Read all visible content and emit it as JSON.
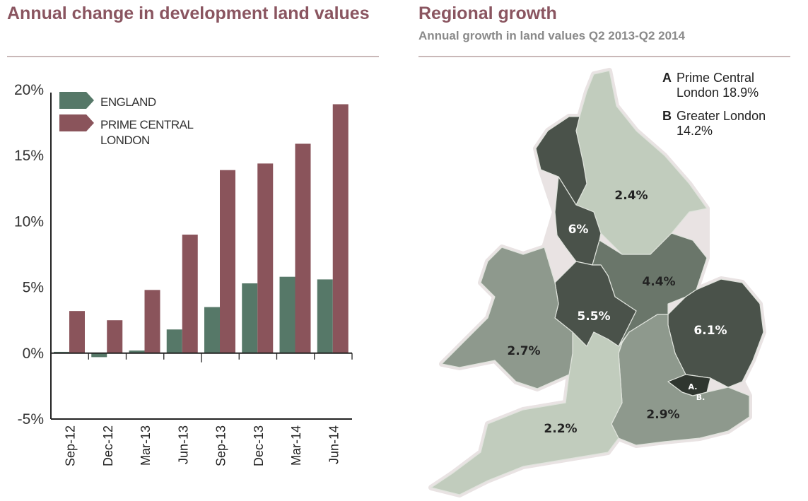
{
  "left_panel": {
    "title": "Annual change in development land values"
  },
  "right_panel": {
    "title": "Regional growth",
    "subtitle": "Annual growth in land values Q2 2013-Q2 2014",
    "legend": [
      {
        "key": "A",
        "text": "Prime Central",
        "text2": "London 18.9%"
      },
      {
        "key": "B",
        "text": "Greater London",
        "text2": "14.2%"
      }
    ],
    "regions": {
      "north_east_yorkshire": "2.4%",
      "north_west": "6%",
      "east_midlands": "4.4%",
      "west_midlands": "5.5%",
      "east": "6.1%",
      "wales": "2.7%",
      "south_east": "2.9%",
      "south_west": "2.2%",
      "london_a": "A.",
      "london_b": "B."
    },
    "colors": {
      "dark": "#4a524a",
      "mid": "#6a766a",
      "midlight": "#8e998d",
      "light": "#c1ccbd",
      "london": "#2f362f"
    }
  },
  "chart_data": {
    "type": "bar",
    "title": "Annual change in development land values",
    "xlabel": "",
    "ylabel": "",
    "categories": [
      "Sep-12",
      "Dec-12",
      "Mar-13",
      "Jun-13",
      "Sep-13",
      "Dec-13",
      "Mar-14",
      "Jun-14"
    ],
    "series": [
      {
        "name": "ENGLAND",
        "color": "#567868",
        "values": [
          0.1,
          -0.3,
          0.2,
          1.8,
          3.5,
          5.3,
          5.8,
          5.6
        ]
      },
      {
        "name": "PRIME CENTRAL LONDON",
        "color": "#8a545b",
        "values": [
          3.2,
          2.5,
          4.8,
          9.0,
          13.9,
          14.4,
          15.9,
          18.9
        ]
      }
    ],
    "legend_names": [
      "ENGLAND",
      "PRIME CENTRAL",
      "LONDON"
    ],
    "ylim": [
      -5,
      20
    ],
    "yticks": [
      "20%",
      "15%",
      "10%",
      "5%",
      "0%",
      "-5%"
    ],
    "grid": false,
    "legend_position": "top-left"
  }
}
